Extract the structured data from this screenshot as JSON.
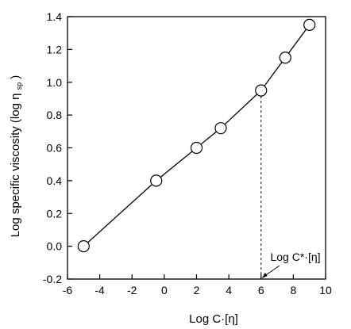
{
  "chart_data": {
    "type": "line",
    "xlabel_main": "Log C·[η]",
    "ylabel_main": "Log  specific viscosity",
    "ylabel_paren_open": "(log η",
    "ylabel_sub": "sp",
    "ylabel_paren_close": ")",
    "xlim": [
      -6,
      10
    ],
    "ylim": [
      -0.2,
      1.4
    ],
    "xticks": [
      -6,
      -4,
      -2,
      0,
      2,
      4,
      6,
      8,
      10
    ],
    "xtick_labels": [
      "-6",
      "-4",
      "-2",
      "0",
      "2",
      "4",
      "6",
      "8",
      "10"
    ],
    "yticks": [
      -0.2,
      0.0,
      0.2,
      0.4,
      0.6,
      0.8,
      1.0,
      1.2,
      1.4
    ],
    "ytick_labels": [
      "-0.2",
      "0.0",
      "0.2",
      "0.4",
      "0.6",
      "0.8",
      "1.0",
      "1.2",
      "1.4"
    ],
    "grid": false,
    "series": [
      {
        "x": [
          -5.0,
          -0.5,
          2.0,
          3.5,
          6.0,
          7.5,
          9.0
        ],
        "y": [
          0.0,
          0.4,
          0.6,
          0.72,
          0.95,
          1.15,
          1.35
        ]
      }
    ],
    "annotation": {
      "text": "Log C*·[η]",
      "x": 6.0,
      "y_from": 0.95
    }
  }
}
